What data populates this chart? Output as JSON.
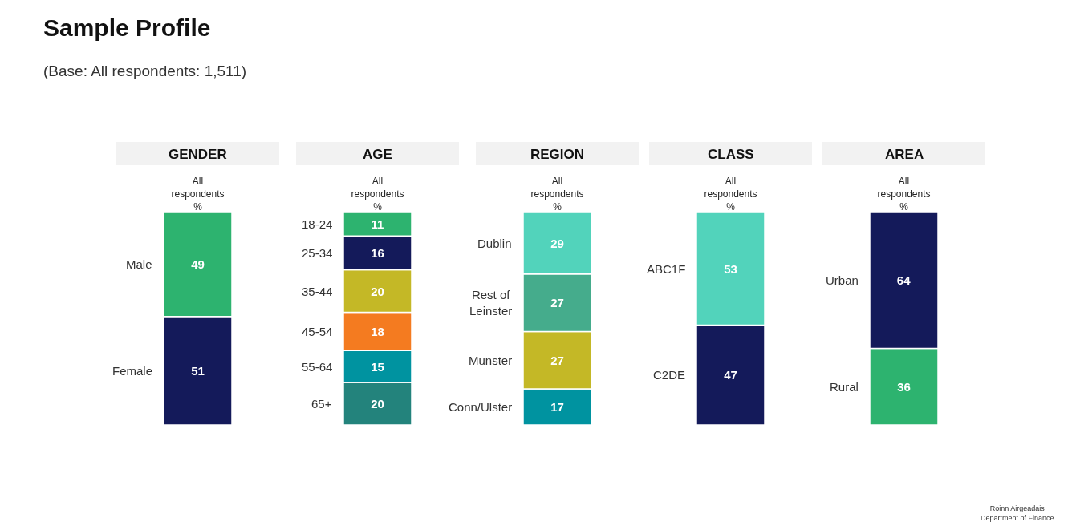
{
  "chart_data": [
    {
      "type": "bar",
      "title": "GENDER",
      "stacked": true,
      "data_labels": true,
      "categories": [
        "All respondents %"
      ],
      "annotations": [
        "Sample Profile",
        "(Base: All respondents: 1,511)"
      ],
      "series": [
        {
          "name": "Female",
          "color": "#141a5a",
          "values": [
            51
          ]
        },
        {
          "name": "Male",
          "color": "#2db36f",
          "values": [
            49
          ]
        }
      ]
    },
    {
      "type": "bar",
      "title": "AGE",
      "stacked": true,
      "data_labels": true,
      "categories": [
        "All respondents %"
      ],
      "series": [
        {
          "name": "65+",
          "color": "#23837c",
          "values": [
            20
          ]
        },
        {
          "name": "55-64",
          "color": "#0093a0",
          "values": [
            15
          ]
        },
        {
          "name": "45-54",
          "color": "#f47b20",
          "values": [
            18
          ]
        },
        {
          "name": "35-44",
          "color": "#c4b826",
          "values": [
            20
          ]
        },
        {
          "name": "25-34",
          "color": "#141a5a",
          "values": [
            16
          ]
        },
        {
          "name": "18-24",
          "color": "#2db36f",
          "values": [
            11
          ]
        }
      ]
    },
    {
      "type": "bar",
      "title": "REGION",
      "stacked": true,
      "data_labels": true,
      "categories": [
        "All respondents %"
      ],
      "series": [
        {
          "name": "Conn/Ulster",
          "color": "#0093a0",
          "values": [
            17
          ]
        },
        {
          "name": "Munster",
          "color": "#c4b826",
          "values": [
            27
          ]
        },
        {
          "name": "Rest of Leinster",
          "color": "#45ac8c",
          "values": [
            27
          ]
        },
        {
          "name": "Dublin",
          "color": "#52d3bb",
          "values": [
            29
          ]
        }
      ]
    },
    {
      "type": "bar",
      "title": "CLASS",
      "stacked": true,
      "data_labels": true,
      "categories": [
        "All respondents %"
      ],
      "series": [
        {
          "name": "C2DE",
          "color": "#141a5a",
          "values": [
            47
          ]
        },
        {
          "name": "ABC1F",
          "color": "#52d3bb",
          "values": [
            53
          ]
        }
      ]
    },
    {
      "type": "bar",
      "title": "AREA",
      "stacked": true,
      "data_labels": true,
      "categories": [
        "All respondents %"
      ],
      "annotations": [
        "Roinn Airgeadais\nDepartment of Finance"
      ],
      "series": [
        {
          "name": "Rural",
          "color": "#2db36f",
          "values": [
            36
          ]
        },
        {
          "name": "Urban",
          "color": "#141a5a",
          "values": [
            64
          ]
        }
      ]
    }
  ]
}
